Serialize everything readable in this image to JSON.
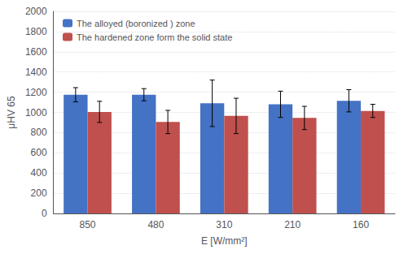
{
  "chart_data": {
    "type": "bar",
    "categories": [
      "850",
      "480",
      "310",
      "210",
      "160"
    ],
    "xlabel": "E [W/mm²]",
    "ylabel": "μHV 65",
    "series": [
      {
        "name": "The alloyed (boronized ) zone",
        "color": "#4472C4",
        "values": [
          1175,
          1175,
          1090,
          1080,
          1115
        ],
        "errors": [
          70,
          60,
          230,
          130,
          110
        ]
      },
      {
        "name": "The hardened zone form the solid state",
        "color": "#C0504D",
        "values": [
          1005,
          905,
          965,
          945,
          1015
        ],
        "errors": [
          105,
          115,
          175,
          115,
          65
        ]
      }
    ],
    "ylim": [
      0,
      2000
    ],
    "yticks": [
      0,
      200,
      400,
      600,
      800,
      1000,
      1200,
      1400,
      1600,
      1800,
      2000
    ],
    "grid": true,
    "legend": "upper left"
  }
}
